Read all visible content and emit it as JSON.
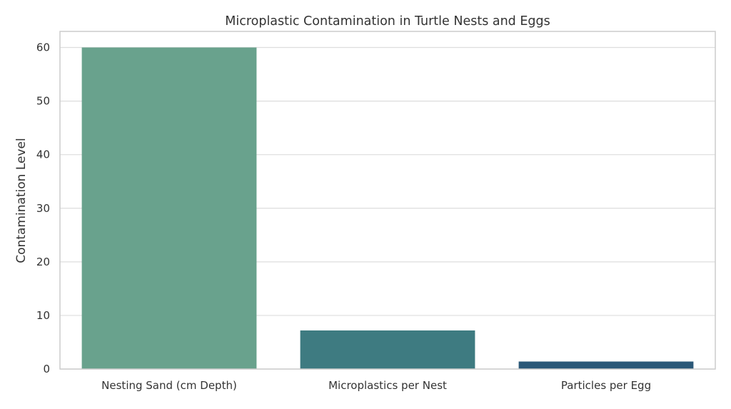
{
  "chart_data": {
    "type": "bar",
    "title": "Microplastic Contamination in Turtle Nests and Eggs",
    "xlabel": "",
    "ylabel": "Contamination Level",
    "categories": [
      "Nesting Sand (cm Depth)",
      "Microplastics per Nest",
      "Particles per Egg"
    ],
    "values": [
      60,
      7.2,
      1.4
    ],
    "colors": [
      "#69a28d",
      "#3e7b81",
      "#2b5878"
    ],
    "ylim": [
      0,
      63
    ],
    "yticks": [
      0,
      10,
      20,
      30,
      40,
      50,
      60
    ],
    "grid": true
  }
}
